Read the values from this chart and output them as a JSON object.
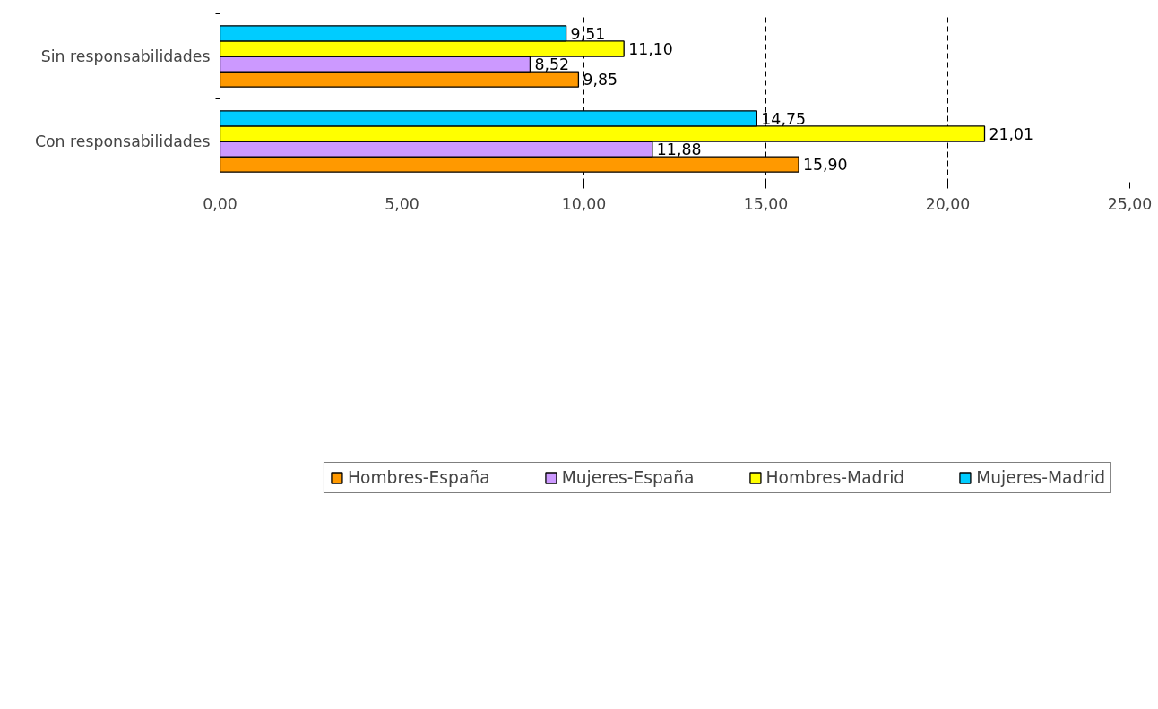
{
  "chart_data": {
    "type": "bar",
    "orientation": "horizontal",
    "categories": [
      "Sin responsabilidades",
      "Con responsabilidades"
    ],
    "series": [
      {
        "name": "Hombres-España",
        "color": "#ff9900",
        "values": [
          9.85,
          15.9
        ],
        "value_labels": [
          "9,85",
          "15,90"
        ]
      },
      {
        "name": "Mujeres-España",
        "color": "#cc99ff",
        "values": [
          8.52,
          11.88
        ],
        "value_labels": [
          "8,52",
          "11,88"
        ]
      },
      {
        "name": "Hombres-Madrid",
        "color": "#ffff00",
        "values": [
          11.1,
          21.01
        ],
        "value_labels": [
          "11,10",
          "21,01"
        ]
      },
      {
        "name": "Mujeres-Madrid",
        "color": "#00ccff",
        "values": [
          9.51,
          14.75
        ],
        "value_labels": [
          "9,51",
          "14,75"
        ]
      }
    ],
    "xlim": [
      0,
      25
    ],
    "xticks": [
      {
        "value": 0,
        "label": "0,00"
      },
      {
        "value": 5,
        "label": "5,00"
      },
      {
        "value": 10,
        "label": "10,00"
      },
      {
        "value": 15,
        "label": "15,00"
      },
      {
        "value": 20,
        "label": "20,00"
      },
      {
        "value": 25,
        "label": "25,00"
      }
    ],
    "grid": "x",
    "legend": "bottom"
  }
}
